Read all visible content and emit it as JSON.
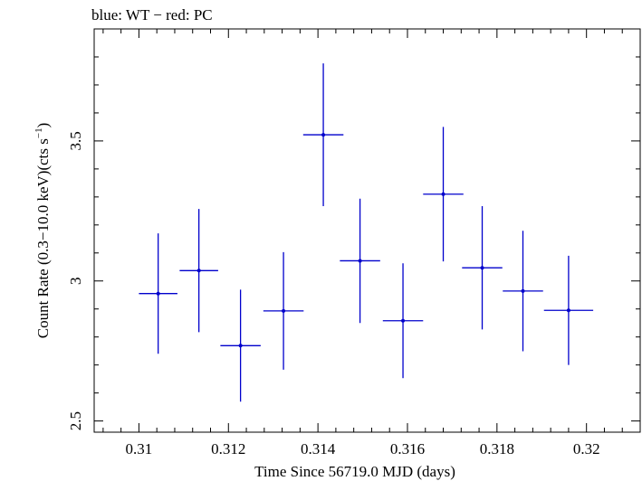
{
  "chart_data": {
    "type": "scatter",
    "title": "blue: WT − red: PC",
    "xlabel": "Time Since 56719.0 MJD (days)",
    "ylabel_main": "Count Rate (0.3−10.0 keV)(cts s",
    "ylabel_sup": "−1",
    "ylabel_close": ")",
    "xlim": [
      0.309,
      0.3212
    ],
    "ylim": [
      2.46,
      3.9
    ],
    "xticks": [
      0.31,
      0.312,
      0.314,
      0.316,
      0.318,
      0.32
    ],
    "xtick_labels": [
      "0.31",
      "0.312",
      "0.314",
      "0.316",
      "0.318",
      "0.32"
    ],
    "yticks": [
      2.5,
      3.0,
      3.5
    ],
    "ytick_labels": [
      "2.5",
      "3",
      "3.5"
    ],
    "grid": false,
    "series": [
      {
        "color": "#0000cc",
        "points": [
          {
            "x": 0.31043,
            "xerr": 0.00043,
            "y": 2.955,
            "yerr": 0.215
          },
          {
            "x": 0.31134,
            "xerr": 0.00043,
            "y": 3.037,
            "yerr": 0.22
          },
          {
            "x": 0.31227,
            "xerr": 0.00045,
            "y": 2.769,
            "yerr": 0.2
          },
          {
            "x": 0.31323,
            "xerr": 0.00045,
            "y": 2.893,
            "yerr": 0.21
          },
          {
            "x": 0.31412,
            "xerr": 0.00045,
            "y": 3.522,
            "yerr": 0.255
          },
          {
            "x": 0.31494,
            "xerr": 0.00045,
            "y": 3.072,
            "yerr": 0.222
          },
          {
            "x": 0.3159,
            "xerr": 0.00045,
            "y": 2.858,
            "yerr": 0.205
          },
          {
            "x": 0.3168,
            "xerr": 0.00045,
            "y": 3.31,
            "yerr": 0.24
          },
          {
            "x": 0.31767,
            "xerr": 0.00045,
            "y": 3.047,
            "yerr": 0.22
          },
          {
            "x": 0.31858,
            "xerr": 0.00045,
            "y": 2.964,
            "yerr": 0.215
          },
          {
            "x": 0.3196,
            "xerr": 0.00055,
            "y": 2.895,
            "yerr": 0.195
          }
        ]
      }
    ]
  }
}
